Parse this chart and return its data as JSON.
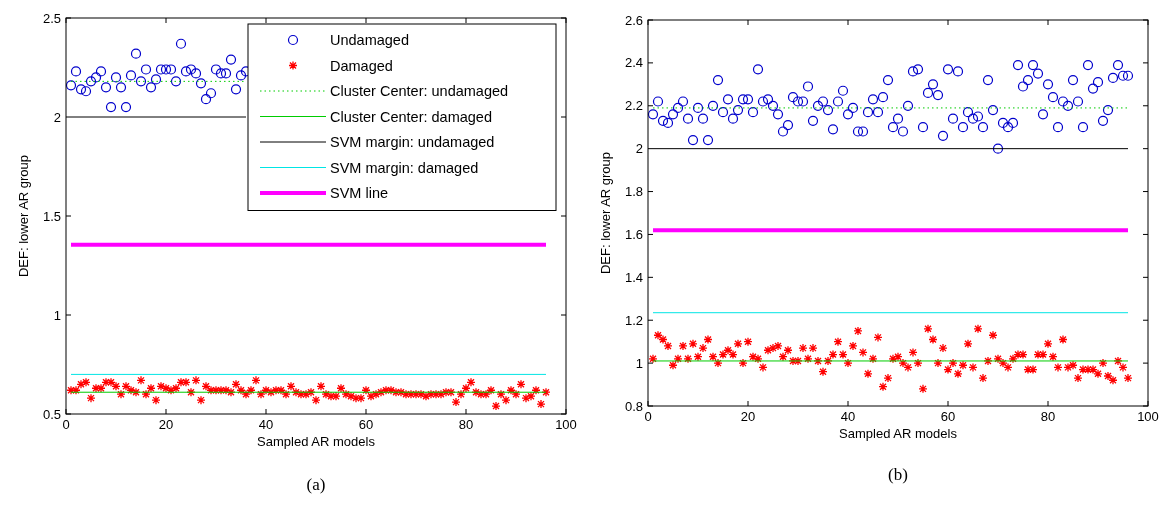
{
  "chart_data": [
    {
      "type": "scatter",
      "title": "(a)",
      "xlabel": "Sampled AR models",
      "ylabel": "DEF: lower AR group",
      "xlim": [
        0,
        100
      ],
      "xticks": [
        0,
        20,
        40,
        60,
        80,
        100
      ],
      "ylim": [
        0.5,
        2.5
      ],
      "yticks": [
        0.5,
        1,
        1.5,
        2,
        2.5
      ],
      "grid": false,
      "legend": "top right",
      "x": [
        1,
        2,
        3,
        4,
        5,
        6,
        7,
        8,
        9,
        10,
        11,
        12,
        13,
        14,
        15,
        16,
        17,
        18,
        19,
        20,
        21,
        22,
        23,
        24,
        25,
        26,
        27,
        28,
        29,
        30,
        31,
        32,
        33,
        34,
        35,
        36,
        37,
        38,
        39,
        40,
        41,
        42,
        43,
        44,
        45,
        46,
        47,
        48,
        49,
        50,
        51,
        52,
        53,
        54,
        55,
        56,
        57,
        58,
        59,
        60,
        61,
        62,
        63,
        64,
        65,
        66,
        67,
        68,
        69,
        70,
        71,
        72,
        73,
        74,
        75,
        76,
        77,
        78,
        79,
        80,
        81,
        82,
        83,
        84,
        85,
        86,
        87,
        88,
        89,
        90,
        91,
        92,
        93,
        94,
        95,
        96
      ],
      "series": [
        {
          "name": "Undamaged",
          "type": "scatter",
          "marker": "circle",
          "color": "#0000cc",
          "values": [
            2.16,
            2.23,
            2.14,
            2.13,
            2.18,
            2.2,
            2.23,
            2.15,
            2.05,
            2.2,
            2.15,
            2.05,
            2.21,
            2.32,
            2.18,
            2.24,
            2.15,
            2.19,
            2.24,
            2.24,
            2.24,
            2.18,
            2.37,
            2.23,
            2.24,
            2.22,
            2.17,
            2.09,
            2.12,
            2.24,
            2.22,
            2.22,
            2.29,
            2.14,
            2.21,
            2.23,
            null,
            null,
            null,
            null,
            null,
            null,
            null,
            null,
            null,
            null,
            null,
            null,
            null,
            null,
            null,
            null,
            null,
            null,
            null,
            null,
            null,
            null,
            null,
            null,
            null,
            null,
            null,
            null,
            null,
            null,
            null,
            null,
            null,
            null,
            null,
            null,
            null,
            null,
            null,
            null,
            null,
            null,
            null,
            null,
            null,
            null,
            null,
            null,
            null,
            null,
            null,
            null,
            null,
            null,
            null,
            null,
            null,
            null,
            null,
            null
          ]
        },
        {
          "name": "Damaged",
          "type": "scatter",
          "marker": "cross",
          "color": "#ff0000",
          "values": [
            0.62,
            0.62,
            0.65,
            0.66,
            0.58,
            0.63,
            0.63,
            0.66,
            0.66,
            0.64,
            0.6,
            0.64,
            0.62,
            0.61,
            0.67,
            0.6,
            0.63,
            0.57,
            0.64,
            0.63,
            0.62,
            0.63,
            0.66,
            0.66,
            0.61,
            0.67,
            0.57,
            0.64,
            0.62,
            0.62,
            0.62,
            0.62,
            0.61,
            0.65,
            0.62,
            0.6,
            0.62,
            0.67,
            0.6,
            0.62,
            0.61,
            0.62,
            0.62,
            0.6,
            0.64,
            0.61,
            0.6,
            0.6,
            0.61,
            0.57,
            0.64,
            0.6,
            0.59,
            0.59,
            0.63,
            0.6,
            0.59,
            0.58,
            0.58,
            0.62,
            0.59,
            0.6,
            0.61,
            0.62,
            0.62,
            0.61,
            0.61,
            0.6,
            0.6,
            0.6,
            0.6,
            0.59,
            0.6,
            0.6,
            0.6,
            0.61,
            0.61,
            0.56,
            0.6,
            0.63,
            0.66,
            0.61,
            0.6,
            0.6,
            0.62,
            0.54,
            0.6,
            0.57,
            0.62,
            0.6,
            0.65,
            0.58,
            0.59,
            0.62,
            0.55,
            0.61
          ]
        },
        {
          "name": "Cluster Center: undamaged",
          "type": "line",
          "marker": "none",
          "line_style": "dotted",
          "color": "#00cc00",
          "x": [
            1,
            36
          ],
          "values": [
            2.18,
            2.18
          ]
        },
        {
          "name": "Cluster Center: damaged",
          "type": "line",
          "marker": "none",
          "line_style": "solid",
          "color": "#00cc00",
          "x": [
            1,
            96
          ],
          "values": [
            0.61,
            0.61
          ]
        },
        {
          "name": "SVM margin: undamaged",
          "type": "line",
          "marker": "none",
          "line_style": "solid",
          "color": "#000000",
          "values": [
            2,
            2,
            2,
            2,
            2,
            2,
            2,
            2,
            2,
            2,
            2,
            2,
            2,
            2,
            2,
            2,
            2,
            2,
            2,
            2,
            2,
            2,
            2,
            2,
            2,
            2,
            2,
            2,
            2,
            2,
            2,
            2,
            2,
            2,
            2,
            2,
            null,
            null,
            null,
            null,
            null,
            null,
            null,
            null,
            null,
            null,
            null,
            null,
            null,
            null,
            null,
            null,
            null,
            null,
            null,
            null,
            null,
            null,
            null,
            null,
            null,
            null,
            null,
            null,
            null,
            null,
            null,
            null,
            null,
            null,
            null,
            null,
            null,
            null,
            null,
            null,
            null,
            null,
            null,
            null,
            null,
            null,
            null,
            null,
            null,
            null,
            null,
            null,
            null,
            null,
            null,
            null,
            null,
            null,
            null,
            null
          ]
        },
        {
          "name": "SVM margin: damaged",
          "type": "line",
          "marker": "none",
          "line_style": "solid",
          "color": "#00e5e5",
          "values": [
            0.7,
            0.7,
            0.7,
            0.7,
            0.7,
            0.7,
            0.7,
            0.7,
            0.7,
            0.7,
            0.7,
            0.7,
            0.7,
            0.7,
            0.7,
            0.7,
            0.7,
            0.7,
            0.7,
            0.7,
            0.7,
            0.7,
            0.7,
            0.7,
            0.7,
            0.7,
            0.7,
            0.7,
            0.7,
            0.7,
            0.7,
            0.7,
            0.7,
            0.7,
            0.7,
            0.7,
            0.7,
            0.7,
            0.7,
            0.7,
            0.7,
            0.7,
            0.7,
            0.7,
            0.7,
            0.7,
            0.7,
            0.7,
            0.7,
            0.7,
            0.7,
            0.7,
            0.7,
            0.7,
            0.7,
            0.7,
            0.7,
            0.7,
            0.7,
            0.7,
            0.7,
            0.7,
            0.7,
            0.7,
            0.7,
            0.7,
            0.7,
            0.7,
            0.7,
            0.7,
            0.7,
            0.7,
            0.7,
            0.7,
            0.7,
            0.7,
            0.7,
            0.7,
            0.7,
            0.7,
            0.7,
            0.7,
            0.7,
            0.7,
            0.7,
            0.7,
            0.7,
            0.7,
            0.7,
            0.7,
            0.7,
            0.7,
            0.7,
            0.7,
            0.7,
            0.7
          ]
        }
      ],
      "ref_lines": [
        {
          "axis": "y",
          "value": 1.355,
          "label": "SVM line",
          "color": "#ff00ff"
        }
      ]
    },
    {
      "type": "scatter",
      "title": "(b)",
      "xlabel": "Sampled AR models",
      "ylabel": "DEF: lower AR group",
      "xlim": [
        0,
        100
      ],
      "xticks": [
        0,
        20,
        40,
        60,
        80,
        100
      ],
      "ylim": [
        0.8,
        2.6
      ],
      "yticks": [
        0.8,
        1,
        1.2,
        1.4,
        1.6,
        1.8,
        2,
        2.2,
        2.4,
        2.6
      ],
      "grid": false,
      "legend": false,
      "x": [
        1,
        2,
        3,
        4,
        5,
        6,
        7,
        8,
        9,
        10,
        11,
        12,
        13,
        14,
        15,
        16,
        17,
        18,
        19,
        20,
        21,
        22,
        23,
        24,
        25,
        26,
        27,
        28,
        29,
        30,
        31,
        32,
        33,
        34,
        35,
        36,
        37,
        38,
        39,
        40,
        41,
        42,
        43,
        44,
        45,
        46,
        47,
        48,
        49,
        50,
        51,
        52,
        53,
        54,
        55,
        56,
        57,
        58,
        59,
        60,
        61,
        62,
        63,
        64,
        65,
        66,
        67,
        68,
        69,
        70,
        71,
        72,
        73,
        74,
        75,
        76,
        77,
        78,
        79,
        80,
        81,
        82,
        83,
        84,
        85,
        86,
        87,
        88,
        89,
        90,
        91,
        92,
        93,
        94,
        95,
        96
      ],
      "series": [
        {
          "type": "scatter",
          "marker": "circle",
          "color": "#0000cc",
          "values": [
            2.16,
            2.22,
            2.13,
            2.12,
            2.16,
            2.19,
            2.22,
            2.14,
            2.04,
            2.19,
            2.14,
            2.04,
            2.2,
            2.32,
            2.17,
            2.23,
            2.14,
            2.18,
            2.23,
            2.23,
            2.17,
            2.37,
            2.22,
            2.23,
            2.2,
            2.16,
            2.08,
            2.11,
            2.24,
            2.22,
            2.22,
            2.29,
            2.13,
            2.2,
            2.22,
            2.18,
            2.09,
            2.22,
            2.27,
            2.16,
            2.19,
            2.08,
            2.08,
            2.17,
            2.23,
            2.17,
            2.24,
            2.32,
            2.1,
            2.14,
            2.08,
            2.2,
            2.36,
            2.37,
            2.1,
            2.26,
            2.3,
            2.25,
            2.06,
            2.37,
            2.14,
            2.36,
            2.1,
            2.17,
            2.14,
            2.15,
            2.1,
            2.32,
            2.18,
            2.0,
            2.12,
            2.1,
            2.12,
            2.39,
            2.29,
            2.32,
            2.39,
            2.35,
            2.16,
            2.3,
            2.24,
            2.1,
            2.22,
            2.2,
            2.32,
            2.22,
            2.1,
            2.39,
            2.28,
            2.31,
            2.13,
            2.18,
            2.33,
            2.39,
            2.34,
            2.34
          ]
        },
        {
          "type": "scatter",
          "marker": "cross",
          "color": "#ff0000",
          "values": [
            1.02,
            1.13,
            1.11,
            1.08,
            0.99,
            1.02,
            1.08,
            1.02,
            1.09,
            1.03,
            1.07,
            1.11,
            1.03,
            1.0,
            1.04,
            1.06,
            1.04,
            1.09,
            1.0,
            1.1,
            1.03,
            1.02,
            0.98,
            1.06,
            1.07,
            1.08,
            1.03,
            1.06,
            1.01,
            1.01,
            1.07,
            1.02,
            1.07,
            1.01,
            0.96,
            1.01,
            1.04,
            1.1,
            1.04,
            1.0,
            1.08,
            1.15,
            1.05,
            0.95,
            1.02,
            1.12,
            0.89,
            0.93,
            1.02,
            1.03,
            1.0,
            0.98,
            1.05,
            1.0,
            0.88,
            1.16,
            1.11,
            1.0,
            1.07,
            0.97,
            1.0,
            0.95,
            0.99,
            1.09,
            0.98,
            1.16,
            0.93,
            1.01,
            1.13,
            1.02,
            1.0,
            0.98,
            1.02,
            1.04,
            1.04,
            0.97,
            0.97,
            1.04,
            1.04,
            1.09,
            1.03,
            0.98,
            1.11,
            0.98,
            0.99,
            0.93,
            0.97,
            0.97,
            0.97,
            0.95,
            1.0,
            0.94,
            0.92,
            1.01,
            0.98,
            0.93
          ]
        },
        {
          "type": "line",
          "marker": "none",
          "line_style": "dotted",
          "color": "#00cc00",
          "x": [
            1,
            96
          ],
          "values": [
            2.19,
            2.19
          ]
        },
        {
          "type": "line",
          "marker": "none",
          "line_style": "solid",
          "color": "#00cc00",
          "x": [
            1,
            96
          ],
          "values": [
            1.01,
            1.01
          ]
        },
        {
          "type": "line",
          "marker": "none",
          "line_style": "solid",
          "color": "#000000",
          "values": [
            2,
            2,
            2,
            2,
            2,
            2,
            2,
            2,
            2,
            2,
            2,
            2,
            2,
            2,
            2,
            2,
            2,
            2,
            2,
            2,
            2,
            2,
            2,
            2,
            2,
            2,
            2,
            2,
            2,
            2,
            2,
            2,
            2,
            2,
            2,
            2,
            2,
            2,
            2,
            2,
            2,
            2,
            2,
            2,
            2,
            2,
            2,
            2,
            2,
            2,
            2,
            2,
            2,
            2,
            2,
            2,
            2,
            2,
            2,
            2,
            2,
            2,
            2,
            2,
            2,
            2,
            2,
            2,
            2,
            2,
            2,
            2,
            2,
            2,
            2,
            2,
            2,
            2,
            2,
            2,
            2,
            2,
            2,
            2,
            2,
            2,
            2,
            2,
            2,
            2,
            2,
            2,
            2,
            2,
            2,
            2
          ]
        },
        {
          "type": "line",
          "marker": "none",
          "line_style": "solid",
          "color": "#00e5e5",
          "values": [
            1.235,
            1.235,
            1.235,
            1.235,
            1.235,
            1.235,
            1.235,
            1.235,
            1.235,
            1.235,
            1.235,
            1.235,
            1.235,
            1.235,
            1.235,
            1.235,
            1.235,
            1.235,
            1.235,
            1.235,
            1.235,
            1.235,
            1.235,
            1.235,
            1.235,
            1.235,
            1.235,
            1.235,
            1.235,
            1.235,
            1.235,
            1.235,
            1.235,
            1.235,
            1.235,
            1.235,
            1.235,
            1.235,
            1.235,
            1.235,
            1.235,
            1.235,
            1.235,
            1.235,
            1.235,
            1.235,
            1.235,
            1.235,
            1.235,
            1.235,
            1.235,
            1.235,
            1.235,
            1.235,
            1.235,
            1.235,
            1.235,
            1.235,
            1.235,
            1.235,
            1.235,
            1.235,
            1.235,
            1.235,
            1.235,
            1.235,
            1.235,
            1.235,
            1.235,
            1.235,
            1.235,
            1.235,
            1.235,
            1.235,
            1.235,
            1.235,
            1.235,
            1.235,
            1.235,
            1.235,
            1.235,
            1.235,
            1.235,
            1.235,
            1.235,
            1.235,
            1.235,
            1.235,
            1.235,
            1.235,
            1.235,
            1.235,
            1.235,
            1.235,
            1.235,
            1.235
          ]
        }
      ],
      "ref_lines": [
        {
          "axis": "y",
          "value": 1.62,
          "color": "#ff00ff"
        }
      ]
    }
  ]
}
